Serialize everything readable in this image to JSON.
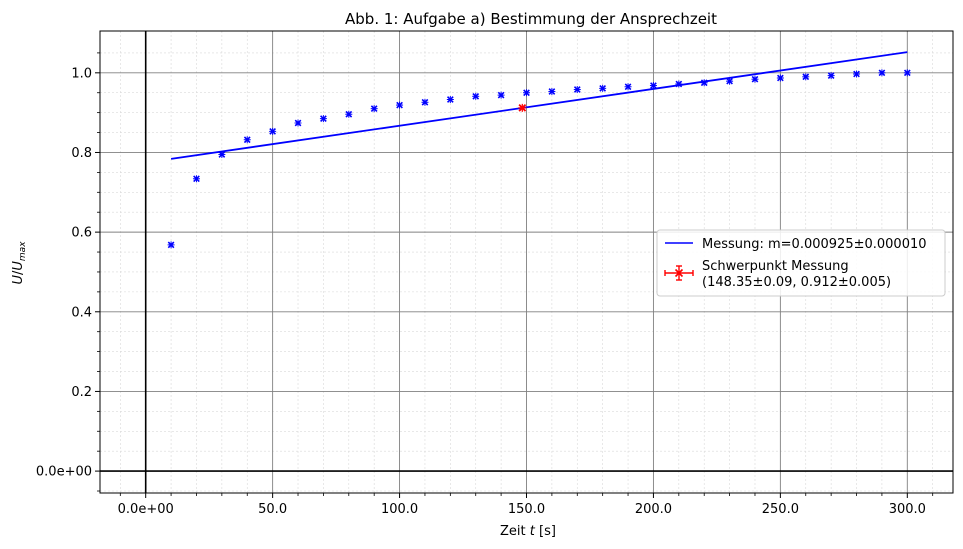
{
  "chart_data": {
    "type": "scatter",
    "title": "Abb. 1: Aufgabe a) Bestimmung der Ansprechzeit",
    "xlabel": "Zeit t [s]",
    "ylabel": "U/U_max",
    "xlim": [
      -18,
      318
    ],
    "ylim": [
      -0.055,
      1.105
    ],
    "x_ticks": [
      0,
      50,
      100,
      150,
      200,
      250,
      300
    ],
    "x_tick_labels": [
      "0.0e+00",
      "50.0",
      "100.0",
      "150.0",
      "200.0",
      "250.0",
      "300.0"
    ],
    "y_ticks": [
      0,
      0.2,
      0.4,
      0.6,
      0.8,
      1.0
    ],
    "y_tick_labels": [
      "0.0e+00",
      "0.2",
      "0.4",
      "0.6",
      "0.8",
      "1.0"
    ],
    "grid": true,
    "legend_position": "center-right",
    "colors": {
      "measurement": "#0000ff",
      "fit": "#0000ff",
      "centroid": "#ff0000",
      "grid_major": "#808080",
      "grid_minor": "#d9d9d9"
    },
    "series": [
      {
        "type": "scatter",
        "x": [
          10,
          20,
          30,
          40,
          50,
          60,
          70,
          80,
          90,
          100,
          110,
          120,
          130,
          140,
          150,
          160,
          170,
          180,
          190,
          200,
          210,
          220,
          230,
          240,
          250,
          260,
          270,
          280,
          290,
          300
        ],
        "y": [
          0.568,
          0.734,
          0.795,
          0.832,
          0.853,
          0.874,
          0.885,
          0.896,
          0.91,
          0.919,
          0.926,
          0.933,
          0.941,
          0.944,
          0.95,
          0.953,
          0.958,
          0.961,
          0.965,
          0.968,
          0.972,
          0.975,
          0.979,
          0.984,
          0.987,
          0.99,
          0.993,
          0.997,
          1.0,
          1.0
        ]
      },
      {
        "name": "Messung: m=0.000925±0.000010",
        "type": "line",
        "x": [
          10,
          300
        ],
        "y": [
          0.784,
          1.052
        ]
      },
      {
        "name": "Schwerpunkt Messung\n(148.35±0.09, 0.912±0.005)",
        "type": "errorbar",
        "x": [
          148.35
        ],
        "y": [
          0.912
        ],
        "xerr": [
          0.09
        ],
        "yerr": [
          0.005
        ]
      }
    ],
    "legend": {
      "line1": "Messung: m=0.000925±0.000010",
      "line2a": "Schwerpunkt Messung",
      "line2b": "(148.35±0.09, 0.912±0.005)"
    }
  }
}
